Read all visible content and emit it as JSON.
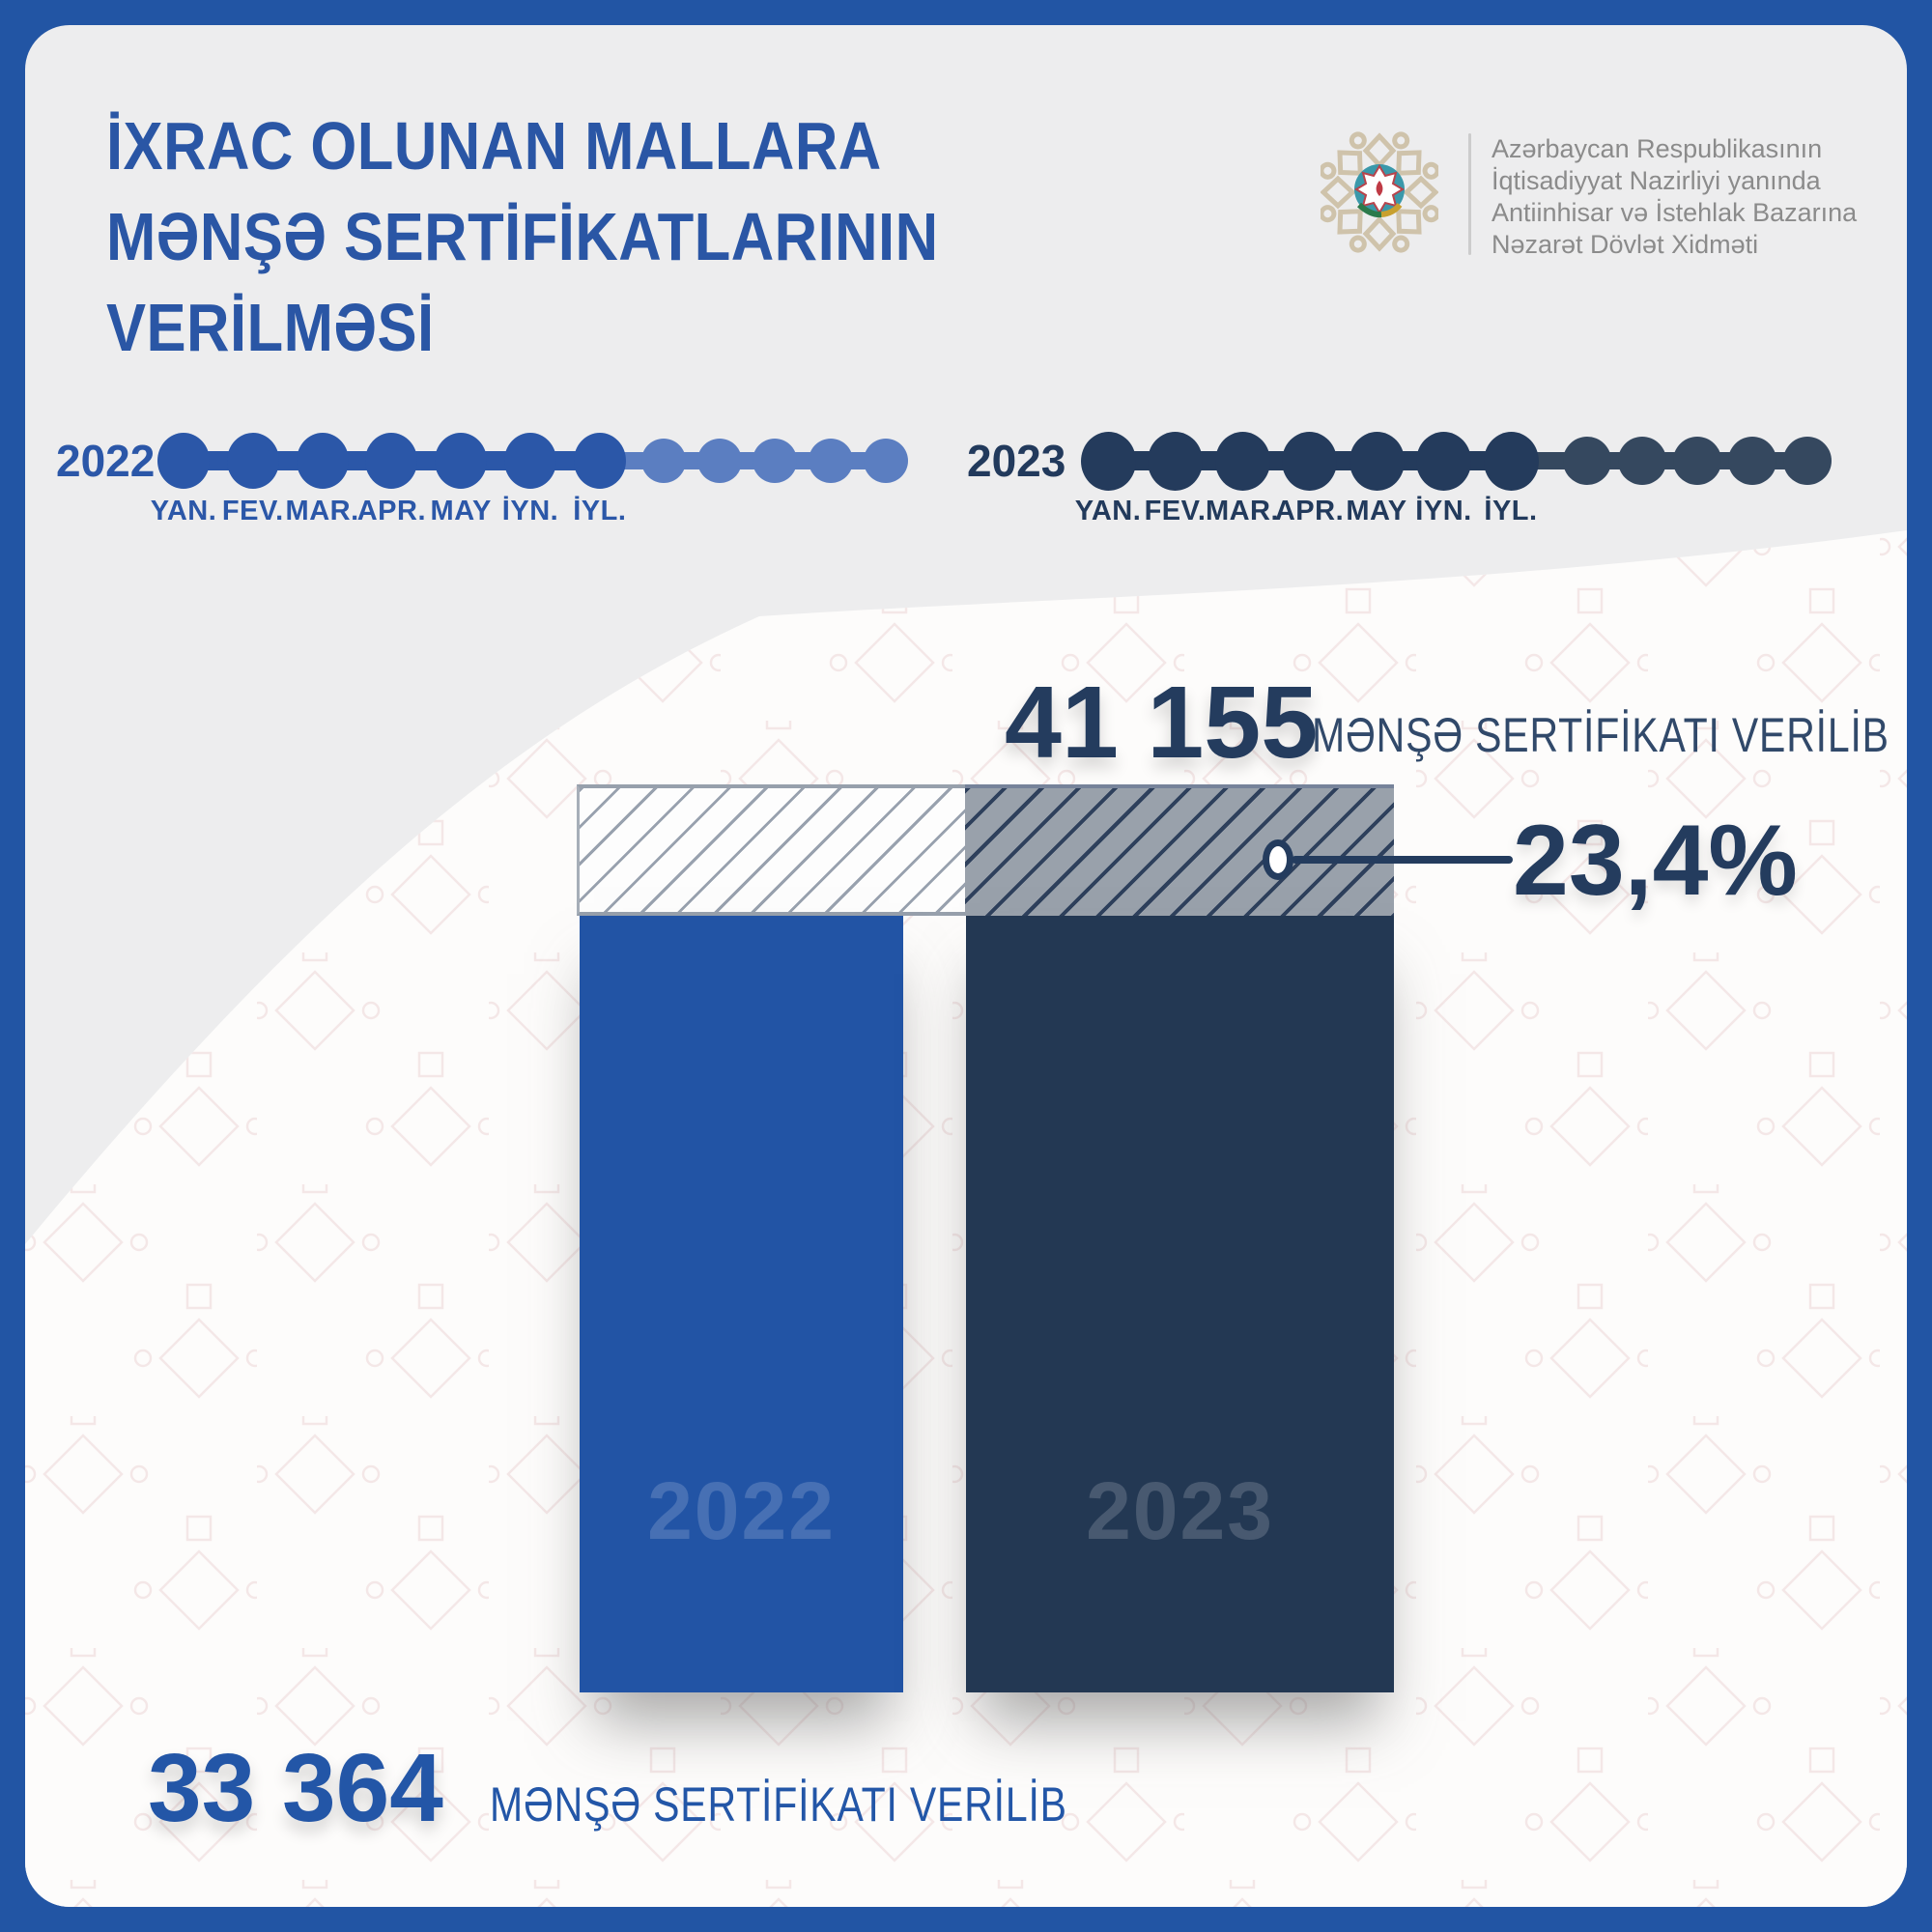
{
  "header": {
    "title_lines": [
      "İXRAC OLUNAN MALLARA",
      "MƏNŞƏ SERTİFİKATLARININ",
      "VERİLMƏSİ"
    ]
  },
  "logo": {
    "org_lines": [
      "Azərbaycan Respublikasının",
      "İqtisadiyyat Nazirliyi yanında",
      "Antiinhisar və İstehlak Bazarına",
      "Nəzarət Dövlət Xidməti"
    ]
  },
  "timelines": [
    {
      "year": "2022",
      "months": [
        "YAN.",
        "FEV.",
        "MAR.",
        "APR.",
        "MAY",
        "İYN.",
        "İYL."
      ],
      "months_highlighted": 7,
      "months_remaining": 5,
      "dot_color": "#2b57a8",
      "faded_dot_color": "#5b7ec1",
      "label_color": "#2b57a8"
    },
    {
      "year": "2023",
      "months": [
        "YAN.",
        "FEV.",
        "MAR.",
        "APR.",
        "MAY",
        "İYN.",
        "İYL."
      ],
      "months_highlighted": 7,
      "months_remaining": 5,
      "dot_color": "#243b5c",
      "faded_dot_color": "#35485f",
      "label_color": "#223a5c"
    }
  ],
  "chart_data": {
    "type": "bar",
    "title": "İXRAC OLUNAN MALLARA MƏNŞƏ SERTİFİKATLARININ VERİLMƏSİ",
    "categories": [
      "2022",
      "2023"
    ],
    "values": [
      33364,
      41155
    ],
    "value_labels": [
      "33 364",
      "41 155"
    ],
    "unit_label": "MƏNŞƏ SERTİFİKATI VERİLİB",
    "change_label": "23,4%",
    "bar_colors": [
      "#2254a5",
      "#233853"
    ],
    "legend_position": "none",
    "grid": false
  },
  "colors": {
    "page_border": "#2255a4",
    "card_bg": "#ededee",
    "wave_bg": "#fdfcfb",
    "accent_blue": "#2254a5",
    "accent_navy": "#233853",
    "hatch_gray": "#99a1ab",
    "hatch_line_navy": "#2e405c",
    "logo_beige": "#cfc3ab",
    "logo_text_gray": "#8b8b8b"
  }
}
